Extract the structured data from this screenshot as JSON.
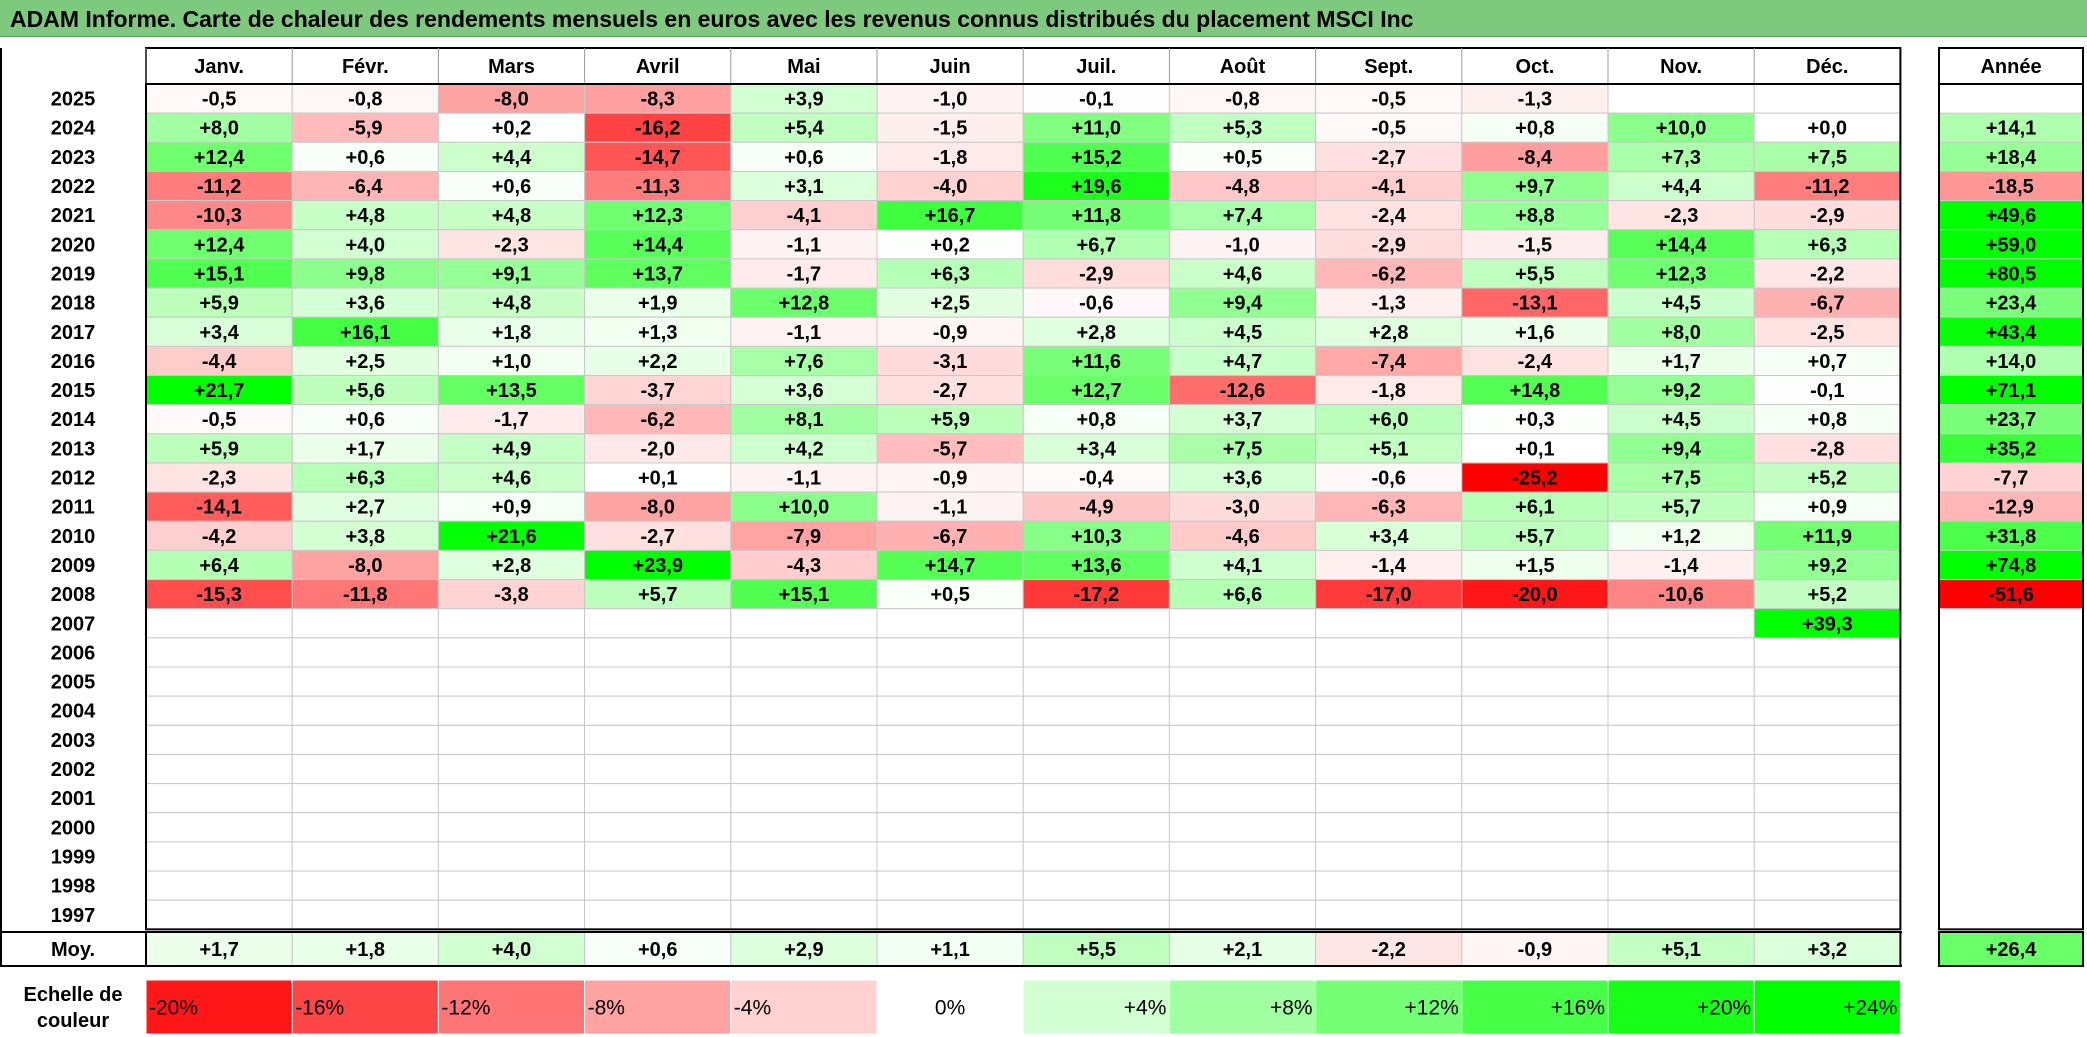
{
  "title": "ADAM Informe. Carte de chaleur des rendements mensuels en euros avec les revenus connus distribués du placement MSCI Inc",
  "chart_data": {
    "type": "heatmap",
    "title": "ADAM Informe. Carte de chaleur des rendements mensuels en euros avec les revenus connus distribués du placement MSCI Inc",
    "columns": [
      "Janv.",
      "Févr.",
      "Mars",
      "Avril",
      "Mai",
      "Juin",
      "Juil.",
      "Août",
      "Sept.",
      "Oct.",
      "Nov.",
      "Déc."
    ],
    "annual_header": "Année",
    "rows": [
      {
        "year": "2025",
        "values": [
          "-0,5",
          "-0,8",
          "-8,0",
          "-8,3",
          "+3,9",
          "-1,0",
          "-0,1",
          "-0,8",
          "-0,5",
          "-1,3",
          "",
          ""
        ],
        "annual": ""
      },
      {
        "year": "2024",
        "values": [
          "+8,0",
          "-5,9",
          "+0,2",
          "-16,2",
          "+5,4",
          "-1,5",
          "+11,0",
          "+5,3",
          "-0,5",
          "+0,8",
          "+10,0",
          "+0,0"
        ],
        "annual": "+14,1"
      },
      {
        "year": "2023",
        "values": [
          "+12,4",
          "+0,6",
          "+4,4",
          "-14,7",
          "+0,6",
          "-1,8",
          "+15,2",
          "+0,5",
          "-2,7",
          "-8,4",
          "+7,3",
          "+7,5"
        ],
        "annual": "+18,4"
      },
      {
        "year": "2022",
        "values": [
          "-11,2",
          "-6,4",
          "+0,6",
          "-11,3",
          "+3,1",
          "-4,0",
          "+19,6",
          "-4,8",
          "-4,1",
          "+9,7",
          "+4,4",
          "-11,2"
        ],
        "annual": "-18,5"
      },
      {
        "year": "2021",
        "values": [
          "-10,3",
          "+4,8",
          "+4,8",
          "+12,3",
          "-4,1",
          "+16,7",
          "+11,8",
          "+7,4",
          "-2,4",
          "+8,8",
          "-2,3",
          "-2,9"
        ],
        "annual": "+49,6"
      },
      {
        "year": "2020",
        "values": [
          "+12,4",
          "+4,0",
          "-2,3",
          "+14,4",
          "-1,1",
          "+0,2",
          "+6,7",
          "-1,0",
          "-2,9",
          "-1,5",
          "+14,4",
          "+6,3"
        ],
        "annual": "+59,0"
      },
      {
        "year": "2019",
        "values": [
          "+15,1",
          "+9,8",
          "+9,1",
          "+13,7",
          "-1,7",
          "+6,3",
          "-2,9",
          "+4,6",
          "-6,2",
          "+5,5",
          "+12,3",
          "-2,2"
        ],
        "annual": "+80,5"
      },
      {
        "year": "2018",
        "values": [
          "+5,9",
          "+3,6",
          "+4,8",
          "+1,9",
          "+12,8",
          "+2,5",
          "-0,6",
          "+9,4",
          "-1,3",
          "-13,1",
          "+4,5",
          "-6,7"
        ],
        "annual": "+23,4"
      },
      {
        "year": "2017",
        "values": [
          "+3,4",
          "+16,1",
          "+1,8",
          "+1,3",
          "-1,1",
          "-0,9",
          "+2,8",
          "+4,5",
          "+2,8",
          "+1,6",
          "+8,0",
          "-2,5"
        ],
        "annual": "+43,4"
      },
      {
        "year": "2016",
        "values": [
          "-4,4",
          "+2,5",
          "+1,0",
          "+2,2",
          "+7,6",
          "-3,1",
          "+11,6",
          "+4,7",
          "-7,4",
          "-2,4",
          "+1,7",
          "+0,7"
        ],
        "annual": "+14,0"
      },
      {
        "year": "2015",
        "values": [
          "+21,7",
          "+5,6",
          "+13,5",
          "-3,7",
          "+3,6",
          "-2,7",
          "+12,7",
          "-12,6",
          "-1,8",
          "+14,8",
          "+9,2",
          "-0,1"
        ],
        "annual": "+71,1"
      },
      {
        "year": "2014",
        "values": [
          "-0,5",
          "+0,6",
          "-1,7",
          "-6,2",
          "+8,1",
          "+5,9",
          "+0,8",
          "+3,7",
          "+6,0",
          "+0,3",
          "+4,5",
          "+0,8"
        ],
        "annual": "+23,7"
      },
      {
        "year": "2013",
        "values": [
          "+5,9",
          "+1,7",
          "+4,9",
          "-2,0",
          "+4,2",
          "-5,7",
          "+3,4",
          "+7,5",
          "+5,1",
          "+0,1",
          "+9,4",
          "-2,8"
        ],
        "annual": "+35,2"
      },
      {
        "year": "2012",
        "values": [
          "-2,3",
          "+6,3",
          "+4,6",
          "+0,1",
          "-1,1",
          "-0,9",
          "-0,4",
          "+3,6",
          "-0,6",
          "-25,2",
          "+7,5",
          "+5,2"
        ],
        "annual": "-7,7"
      },
      {
        "year": "2011",
        "values": [
          "-14,1",
          "+2,7",
          "+0,9",
          "-8,0",
          "+10,0",
          "-1,1",
          "-4,9",
          "-3,0",
          "-6,3",
          "+6,1",
          "+5,7",
          "+0,9"
        ],
        "annual": "-12,9"
      },
      {
        "year": "2010",
        "values": [
          "-4,2",
          "+3,8",
          "+21,6",
          "-2,7",
          "-7,9",
          "-6,7",
          "+10,3",
          "-4,6",
          "+3,4",
          "+5,7",
          "+1,2",
          "+11,9"
        ],
        "annual": "+31,8"
      },
      {
        "year": "2009",
        "values": [
          "+6,4",
          "-8,0",
          "+2,8",
          "+23,9",
          "-4,3",
          "+14,7",
          "+13,6",
          "+4,1",
          "-1,4",
          "+1,5",
          "-1,4",
          "+9,2"
        ],
        "annual": "+74,8"
      },
      {
        "year": "2008",
        "values": [
          "-15,3",
          "-11,8",
          "-3,8",
          "+5,7",
          "+15,1",
          "+0,5",
          "-17,2",
          "+6,6",
          "-17,0",
          "-20,0",
          "-10,6",
          "+5,2"
        ],
        "annual": "-51,6"
      },
      {
        "year": "2007",
        "values": [
          "",
          "",
          "",
          "",
          "",
          "",
          "",
          "",
          "",
          "",
          "",
          "+39,3"
        ],
        "annual": ""
      },
      {
        "year": "2006",
        "values": [
          "",
          "",
          "",
          "",
          "",
          "",
          "",
          "",
          "",
          "",
          "",
          ""
        ],
        "annual": ""
      },
      {
        "year": "2005",
        "values": [
          "",
          "",
          "",
          "",
          "",
          "",
          "",
          "",
          "",
          "",
          "",
          ""
        ],
        "annual": ""
      },
      {
        "year": "2004",
        "values": [
          "",
          "",
          "",
          "",
          "",
          "",
          "",
          "",
          "",
          "",
          "",
          ""
        ],
        "annual": ""
      },
      {
        "year": "2003",
        "values": [
          "",
          "",
          "",
          "",
          "",
          "",
          "",
          "",
          "",
          "",
          "",
          ""
        ],
        "annual": ""
      },
      {
        "year": "2002",
        "values": [
          "",
          "",
          "",
          "",
          "",
          "",
          "",
          "",
          "",
          "",
          "",
          ""
        ],
        "annual": ""
      },
      {
        "year": "2001",
        "values": [
          "",
          "",
          "",
          "",
          "",
          "",
          "",
          "",
          "",
          "",
          "",
          ""
        ],
        "annual": ""
      },
      {
        "year": "2000",
        "values": [
          "",
          "",
          "",
          "",
          "",
          "",
          "",
          "",
          "",
          "",
          "",
          ""
        ],
        "annual": ""
      },
      {
        "year": "1999",
        "values": [
          "",
          "",
          "",
          "",
          "",
          "",
          "",
          "",
          "",
          "",
          "",
          ""
        ],
        "annual": ""
      },
      {
        "year": "1998",
        "values": [
          "",
          "",
          "",
          "",
          "",
          "",
          "",
          "",
          "",
          "",
          "",
          ""
        ],
        "annual": ""
      },
      {
        "year": "1997",
        "values": [
          "",
          "",
          "",
          "",
          "",
          "",
          "",
          "",
          "",
          "",
          "",
          ""
        ],
        "annual": ""
      }
    ],
    "average": {
      "label": "Moy.",
      "values": [
        "+1,7",
        "+1,8",
        "+4,0",
        "+0,6",
        "+2,9",
        "+1,1",
        "+5,5",
        "+2,1",
        "-2,2",
        "-0,9",
        "+5,1",
        "+3,2"
      ],
      "annual": "+26,4"
    },
    "color_scale": {
      "label_line1": "Echelle de",
      "label_line2": "couleur",
      "steps": [
        "-20%",
        "-16%",
        "-12%",
        "-8%",
        "-4%",
        "0%",
        "+4%",
        "+8%",
        "+12%",
        "+16%",
        "+20%",
        "+24%"
      ]
    },
    "colors": {
      "strong_negative": "#ff0000",
      "neutral": "#ffffff",
      "strong_positive": "#00ff00",
      "title_bar": "#7dc97d"
    }
  }
}
